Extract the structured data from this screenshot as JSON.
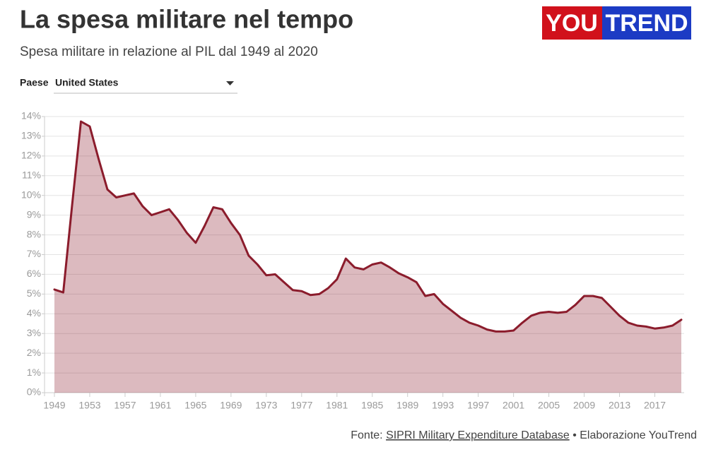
{
  "chart_data": {
    "type": "area",
    "title": "La spesa militare nel tempo",
    "subtitle": "Spesa militare in relazione al PIL dal 1949 al 2020",
    "filter_label": "Paese",
    "filter_value": "United States",
    "logo_left": "YOU",
    "logo_right": "TREND",
    "source_prefix": "Fonte:",
    "source_link": "SIPRI Military Expenditure Database",
    "source_suffix": "• Elaborazione YouTrend",
    "color": "#8b1c2c",
    "grid": true,
    "x": [
      1949,
      1950,
      1951,
      1952,
      1953,
      1954,
      1955,
      1956,
      1957,
      1958,
      1959,
      1960,
      1961,
      1962,
      1963,
      1964,
      1965,
      1966,
      1967,
      1968,
      1969,
      1970,
      1971,
      1972,
      1973,
      1974,
      1975,
      1976,
      1977,
      1978,
      1979,
      1980,
      1981,
      1982,
      1983,
      1984,
      1985,
      1986,
      1987,
      1988,
      1989,
      1990,
      1991,
      1992,
      1993,
      1994,
      1995,
      1996,
      1997,
      1998,
      1999,
      2000,
      2001,
      2002,
      2003,
      2004,
      2005,
      2006,
      2007,
      2008,
      2009,
      2010,
      2011,
      2012,
      2013,
      2014,
      2015,
      2016,
      2017,
      2018,
      2019,
      2020
    ],
    "values": [
      5.23,
      5.08,
      9.5,
      13.75,
      13.5,
      11.85,
      10.3,
      9.9,
      10.0,
      10.1,
      9.45,
      9.0,
      9.15,
      9.3,
      8.75,
      8.1,
      7.6,
      8.45,
      9.4,
      9.3,
      8.6,
      8.0,
      6.95,
      6.5,
      5.95,
      6.0,
      5.6,
      5.2,
      5.15,
      4.95,
      5.0,
      5.3,
      5.75,
      6.8,
      6.35,
      6.25,
      6.5,
      6.6,
      6.35,
      6.05,
      5.85,
      5.6,
      4.9,
      5.0,
      4.5,
      4.15,
      3.8,
      3.55,
      3.4,
      3.2,
      3.1,
      3.1,
      3.15,
      3.55,
      3.9,
      4.05,
      4.1,
      4.05,
      4.1,
      4.45,
      4.9,
      4.9,
      4.8,
      4.35,
      3.9,
      3.55,
      3.4,
      3.35,
      3.25,
      3.3,
      3.4,
      3.7
    ],
    "xlim": [
      1949,
      2020
    ],
    "xticks": [
      1949,
      1953,
      1957,
      1961,
      1965,
      1969,
      1973,
      1977,
      1981,
      1985,
      1989,
      1993,
      1997,
      2001,
      2005,
      2009,
      2013,
      2017
    ],
    "ylim": [
      0,
      14
    ],
    "yticks": [
      {
        "value": 0,
        "label": "0%"
      },
      {
        "value": 1,
        "label": "1%"
      },
      {
        "value": 2,
        "label": "2%"
      },
      {
        "value": 3,
        "label": "3%"
      },
      {
        "value": 4,
        "label": "4%"
      },
      {
        "value": 5,
        "label": "5%"
      },
      {
        "value": 6,
        "label": "6%"
      },
      {
        "value": 7,
        "label": "7%"
      },
      {
        "value": 8,
        "label": "8%"
      },
      {
        "value": 9,
        "label": "9%"
      },
      {
        "value": 10,
        "label": "10%"
      },
      {
        "value": 11,
        "label": "11%"
      },
      {
        "value": 12,
        "label": "12%"
      },
      {
        "value": 13,
        "label": "13%"
      },
      {
        "value": 14,
        "label": "14%"
      }
    ]
  }
}
